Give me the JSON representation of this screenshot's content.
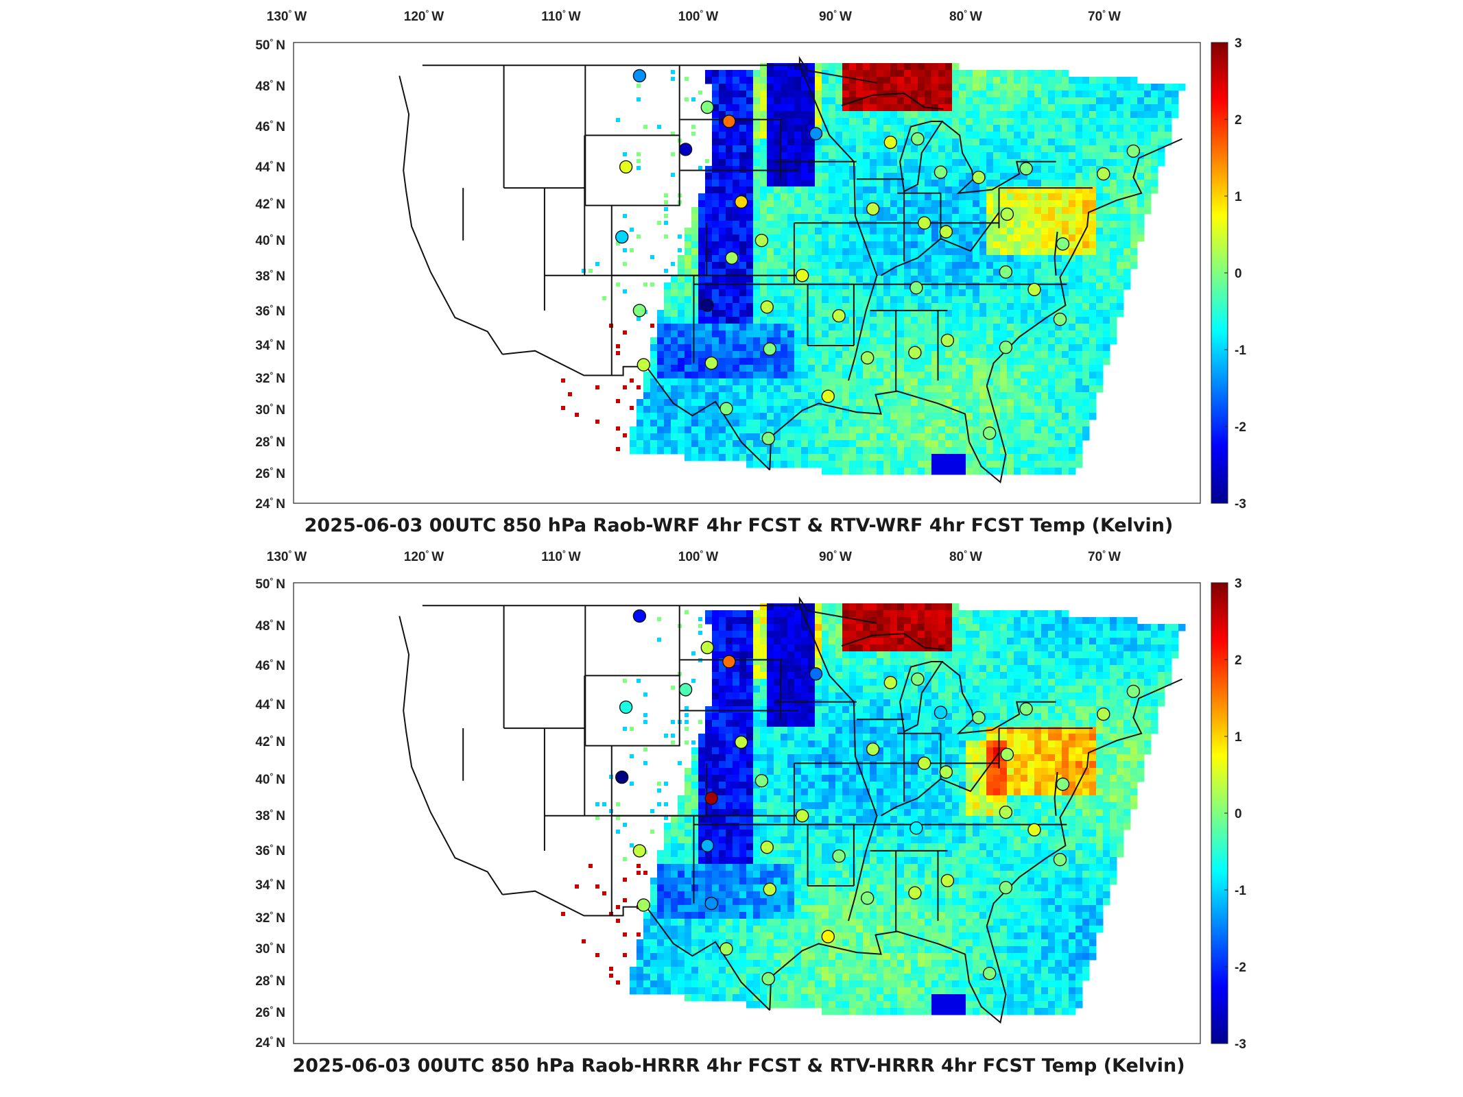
{
  "panels": [
    {
      "title": "2025-06-03 00UTC 850 hPa Raob-WRF 4hr FCST & RTV-WRF 4hr FCST Temp (Kelvin)",
      "stations": [
        [
          -107.0,
          48.4,
          -1.4
        ],
        [
          -102.0,
          46.6,
          0.0
        ],
        [
          -100.4,
          45.8,
          1.6
        ],
        [
          -94.0,
          45.1,
          -1.4
        ],
        [
          -103.6,
          44.2,
          -2.6
        ],
        [
          -108.0,
          43.2,
          0.6
        ],
        [
          -99.5,
          41.2,
          1.0
        ],
        [
          -108.3,
          39.2,
          -1.0
        ],
        [
          -100.2,
          38.0,
          0.2
        ],
        [
          -98.0,
          39.0,
          0.3
        ],
        [
          -95.0,
          37.0,
          0.6
        ],
        [
          -102.0,
          35.3,
          -3.0
        ],
        [
          -107.0,
          35.0,
          0.0
        ],
        [
          -97.6,
          35.2,
          0.4
        ],
        [
          -92.3,
          34.7,
          0.4
        ],
        [
          -97.4,
          32.8,
          0.0
        ],
        [
          -101.7,
          32.0,
          0.3
        ],
        [
          -106.7,
          31.9,
          0.4
        ],
        [
          -100.6,
          29.4,
          0.0
        ],
        [
          -97.5,
          27.7,
          0.0
        ],
        [
          -93.1,
          30.1,
          0.6
        ],
        [
          -90.2,
          32.3,
          0.2
        ],
        [
          -86.7,
          32.6,
          0.3
        ],
        [
          -84.3,
          33.3,
          0.3
        ],
        [
          -88.5,
          44.6,
          0.6
        ],
        [
          -86.5,
          44.8,
          0.0
        ],
        [
          -84.8,
          42.9,
          0.0
        ],
        [
          -82.0,
          42.6,
          0.3
        ],
        [
          -89.8,
          40.8,
          0.4
        ],
        [
          -86.0,
          40.0,
          0.4
        ],
        [
          -84.4,
          39.5,
          0.4
        ],
        [
          -79.9,
          40.5,
          0.3
        ],
        [
          -75.8,
          38.8,
          0.0
        ],
        [
          -86.6,
          36.3,
          0.0
        ],
        [
          -80.0,
          37.2,
          0.0
        ],
        [
          -77.9,
          36.2,
          0.4
        ],
        [
          -80.0,
          32.9,
          0.0
        ],
        [
          -76.0,
          34.5,
          0.0
        ],
        [
          -81.2,
          28.0,
          0.0
        ],
        [
          -72.8,
          42.8,
          0.3
        ],
        [
          -70.6,
          44.1,
          0.0
        ],
        [
          -78.5,
          43.1,
          0.0
        ]
      ]
    },
    {
      "title": "2025-06-03 00UTC 850 hPa Raob-HRRR 4hr FCST & RTV-HRRR 4hr FCST Temp (Kelvin)",
      "stations": [
        [
          -107.0,
          48.4,
          -2.2
        ],
        [
          -102.0,
          46.6,
          0.4
        ],
        [
          -100.4,
          45.8,
          1.6
        ],
        [
          -94.0,
          45.1,
          -1.6
        ],
        [
          -103.6,
          44.2,
          -0.3
        ],
        [
          -108.0,
          43.2,
          -0.6
        ],
        [
          -99.5,
          41.2,
          0.4
        ],
        [
          -108.3,
          39.2,
          -3.0
        ],
        [
          -101.7,
          38.0,
          2.8
        ],
        [
          -98.0,
          39.0,
          0.0
        ],
        [
          -95.0,
          37.0,
          0.4
        ],
        [
          -102.0,
          35.3,
          -1.2
        ],
        [
          -107.0,
          35.0,
          0.4
        ],
        [
          -97.6,
          35.2,
          0.4
        ],
        [
          -92.3,
          34.7,
          0.0
        ],
        [
          -97.4,
          32.8,
          0.4
        ],
        [
          -101.7,
          32.0,
          -1.4
        ],
        [
          -106.7,
          31.9,
          0.2
        ],
        [
          -100.6,
          29.4,
          0.2
        ],
        [
          -97.5,
          27.7,
          0.0
        ],
        [
          -93.1,
          30.1,
          0.8
        ],
        [
          -90.2,
          32.3,
          0.0
        ],
        [
          -86.7,
          32.6,
          0.4
        ],
        [
          -84.3,
          33.3,
          0.4
        ],
        [
          -88.5,
          44.6,
          0.4
        ],
        [
          -86.5,
          44.8,
          0.0
        ],
        [
          -84.8,
          42.9,
          -1.0
        ],
        [
          -82.0,
          42.6,
          0.0
        ],
        [
          -89.8,
          40.8,
          0.3
        ],
        [
          -86.0,
          40.0,
          0.4
        ],
        [
          -84.4,
          39.5,
          0.3
        ],
        [
          -79.9,
          40.5,
          0.2
        ],
        [
          -75.8,
          38.8,
          0.0
        ],
        [
          -86.6,
          36.3,
          -0.8
        ],
        [
          -80.0,
          37.2,
          0.3
        ],
        [
          -77.9,
          36.2,
          0.6
        ],
        [
          -80.0,
          32.9,
          0.0
        ],
        [
          -76.0,
          34.5,
          0.0
        ],
        [
          -81.2,
          28.0,
          0.0
        ],
        [
          -72.8,
          42.8,
          0.3
        ],
        [
          -70.6,
          44.1,
          0.0
        ],
        [
          -78.5,
          43.1,
          0.0
        ]
      ]
    }
  ],
  "map": {
    "lon_ticks": [
      "130",
      "120",
      "110",
      "100",
      "90",
      "80",
      "70"
    ],
    "lon_hemisphere": "W",
    "lat_ticks": [
      "50",
      "48",
      "46",
      "44",
      "42",
      "40",
      "38",
      "36",
      "34",
      "32",
      "30",
      "28",
      "26",
      "24"
    ],
    "lat_hemisphere": "N",
    "degree_symbol": "°"
  },
  "colorbar": {
    "ticks": [
      "3",
      "2",
      "1",
      "0",
      "-1",
      "-2",
      "-3"
    ],
    "range": [
      -3,
      3
    ],
    "colormap": "jet"
  }
}
